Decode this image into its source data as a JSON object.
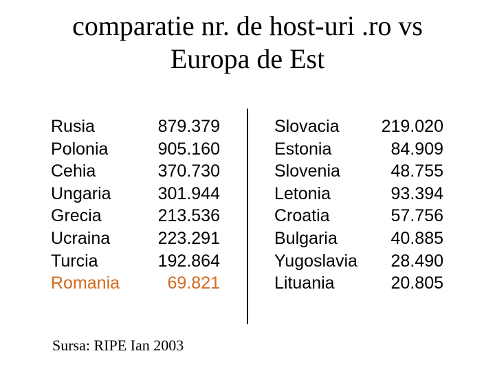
{
  "title": {
    "line1": "comparatie nr. de host-uri .ro vs",
    "line2": "Europa de Est"
  },
  "colors": {
    "text": "#000000",
    "highlight": "#d46a1e"
  },
  "left_table": [
    {
      "country": "Rusia",
      "hosts": "879.379",
      "highlight": false
    },
    {
      "country": "Polonia",
      "hosts": "905.160",
      "highlight": false
    },
    {
      "country": "Cehia",
      "hosts": "370.730",
      "highlight": false
    },
    {
      "country": "Ungaria",
      "hosts": "301.944",
      "highlight": false
    },
    {
      "country": "Grecia",
      "hosts": "213.536",
      "highlight": false
    },
    {
      "country": "Ucraina",
      "hosts": "223.291",
      "highlight": false
    },
    {
      "country": "Turcia",
      "hosts": "192.864",
      "highlight": false
    },
    {
      "country": "Romania",
      "hosts": "69.821",
      "highlight": true
    }
  ],
  "right_table": [
    {
      "country": "Slovacia",
      "hosts": "219.020"
    },
    {
      "country": "Estonia",
      "hosts": "84.909"
    },
    {
      "country": "Slovenia",
      "hosts": "48.755"
    },
    {
      "country": "Letonia",
      "hosts": "93.394"
    },
    {
      "country": "Croatia",
      "hosts": "57.756"
    },
    {
      "country": "Bulgaria",
      "hosts": "40.885"
    },
    {
      "country": "Yugoslavia",
      "hosts": "28.490"
    },
    {
      "country": "Lituania",
      "hosts": "20.805"
    }
  ],
  "source": "Sursa: RIPE Ian 2003"
}
